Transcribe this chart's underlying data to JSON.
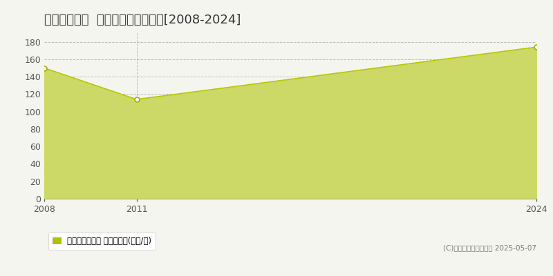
{
  "title": "町田市大蔵町  マンション価格推移[2008-2024]",
  "years": [
    2008,
    2011,
    2024
  ],
  "values": [
    150,
    114,
    174
  ],
  "line_color": "#b8c800",
  "fill_color": "#ccd966",
  "fill_alpha": 1.0,
  "marker_color": "white",
  "marker_edge_color": "#a0b000",
  "marker_size": 5,
  "ylim": [
    0,
    190
  ],
  "yticks": [
    0,
    20,
    40,
    60,
    80,
    100,
    120,
    140,
    160,
    180
  ],
  "xticks": [
    2008,
    2011,
    2024
  ],
  "grid_color": "#bbbbbb",
  "bg_color": "#f5f5f0",
  "plot_bg_color": "#f5f5f0",
  "legend_label": "マンション価格 平均坪単価(万円/坪)",
  "copyright_text": "(C)土地価格ドットコム 2025-05-07",
  "title_fontsize": 13,
  "axis_fontsize": 9,
  "legend_fontsize": 8.5,
  "copyright_fontsize": 7.5,
  "legend_color": "#b0c000"
}
